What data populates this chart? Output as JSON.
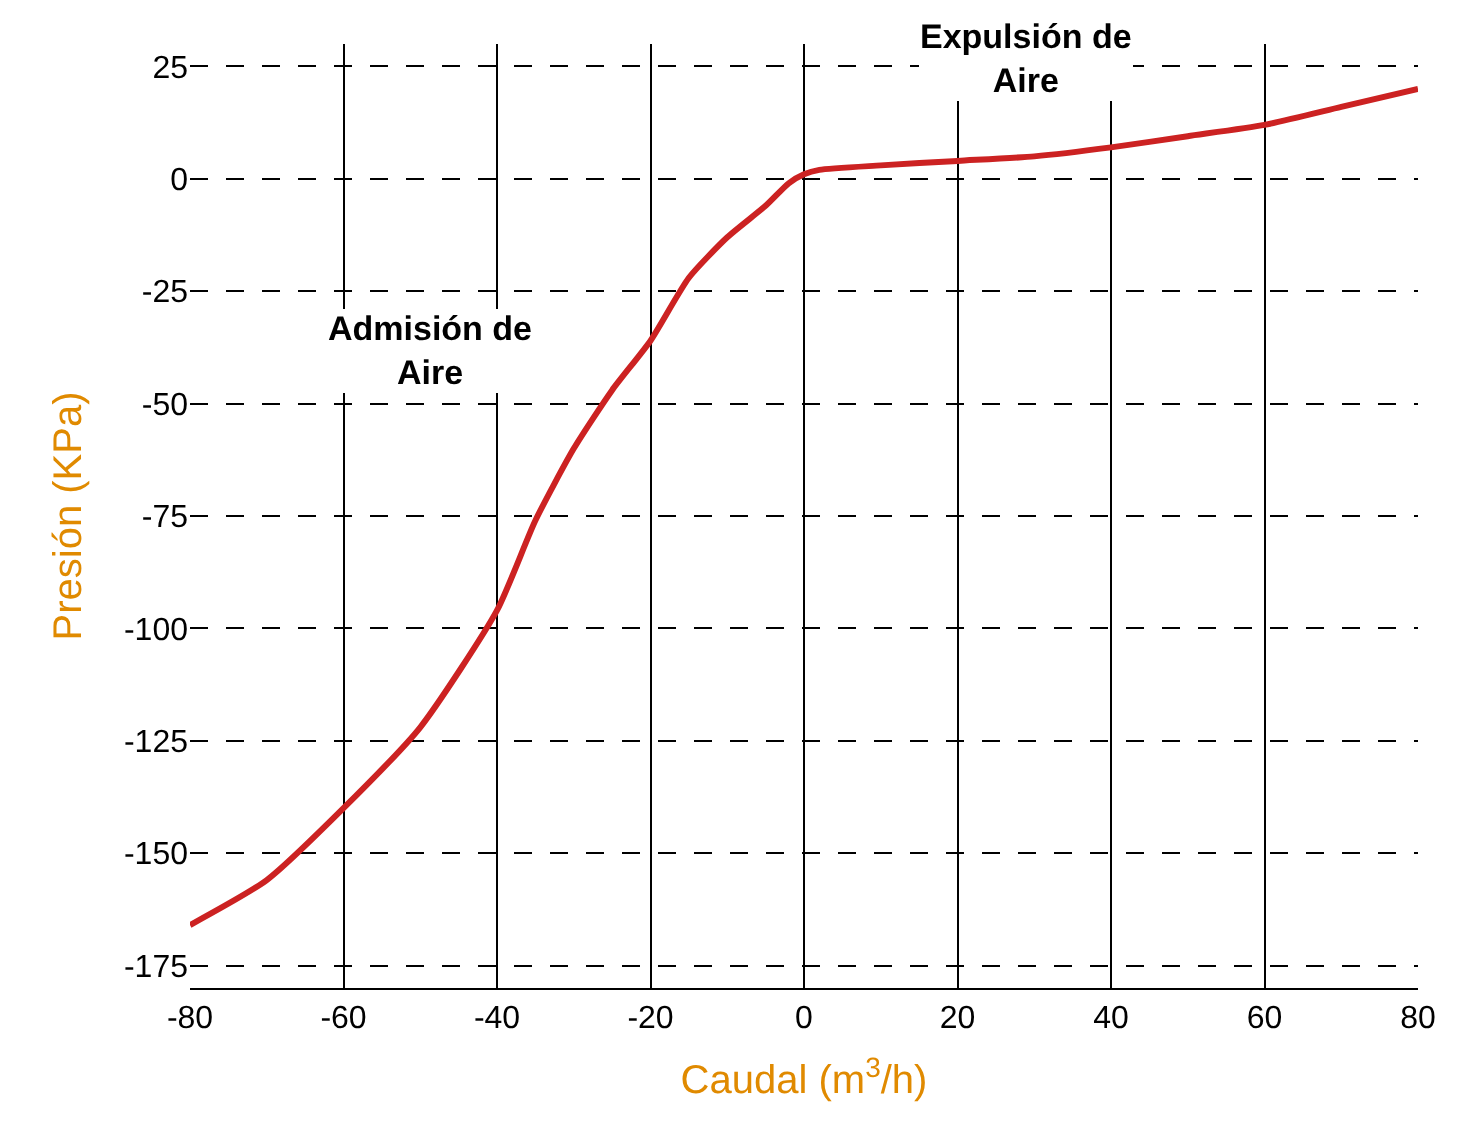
{
  "chart_data": {
    "type": "line",
    "xlabel": "Caudal (m$^{3}$/h)",
    "ylabel": "Presión (KPa)",
    "x": [
      -80,
      -70,
      -60,
      -50,
      -40,
      -35,
      -30,
      -25,
      -20,
      -15,
      -10,
      -5,
      -2,
      0,
      2,
      10,
      20,
      30,
      40,
      50,
      60,
      70,
      80
    ],
    "series": [
      {
        "color": "#cc2222",
        "values": [
          -166,
          -156,
          -140,
          -122,
          -96,
          -76,
          -60,
          -47,
          -36,
          -22,
          -13,
          -6,
          -1,
          1,
          2,
          3,
          4,
          5,
          7,
          9.5,
          12,
          16,
          20
        ]
      }
    ],
    "xlim": [
      -80,
      80
    ],
    "xticks": [
      -80,
      -60,
      -40,
      -20,
      0,
      20,
      40,
      60,
      80
    ],
    "ylim": [
      -180,
      30
    ],
    "yticks": [
      25,
      0,
      -25,
      -50,
      -75,
      -100,
      -125,
      -150,
      -175
    ],
    "grid": true,
    "legend": false,
    "marker": "none",
    "line_style": "solid",
    "annotations": [
      "Admisión de\nAire",
      "Expulsión de\nAire"
    ]
  }
}
